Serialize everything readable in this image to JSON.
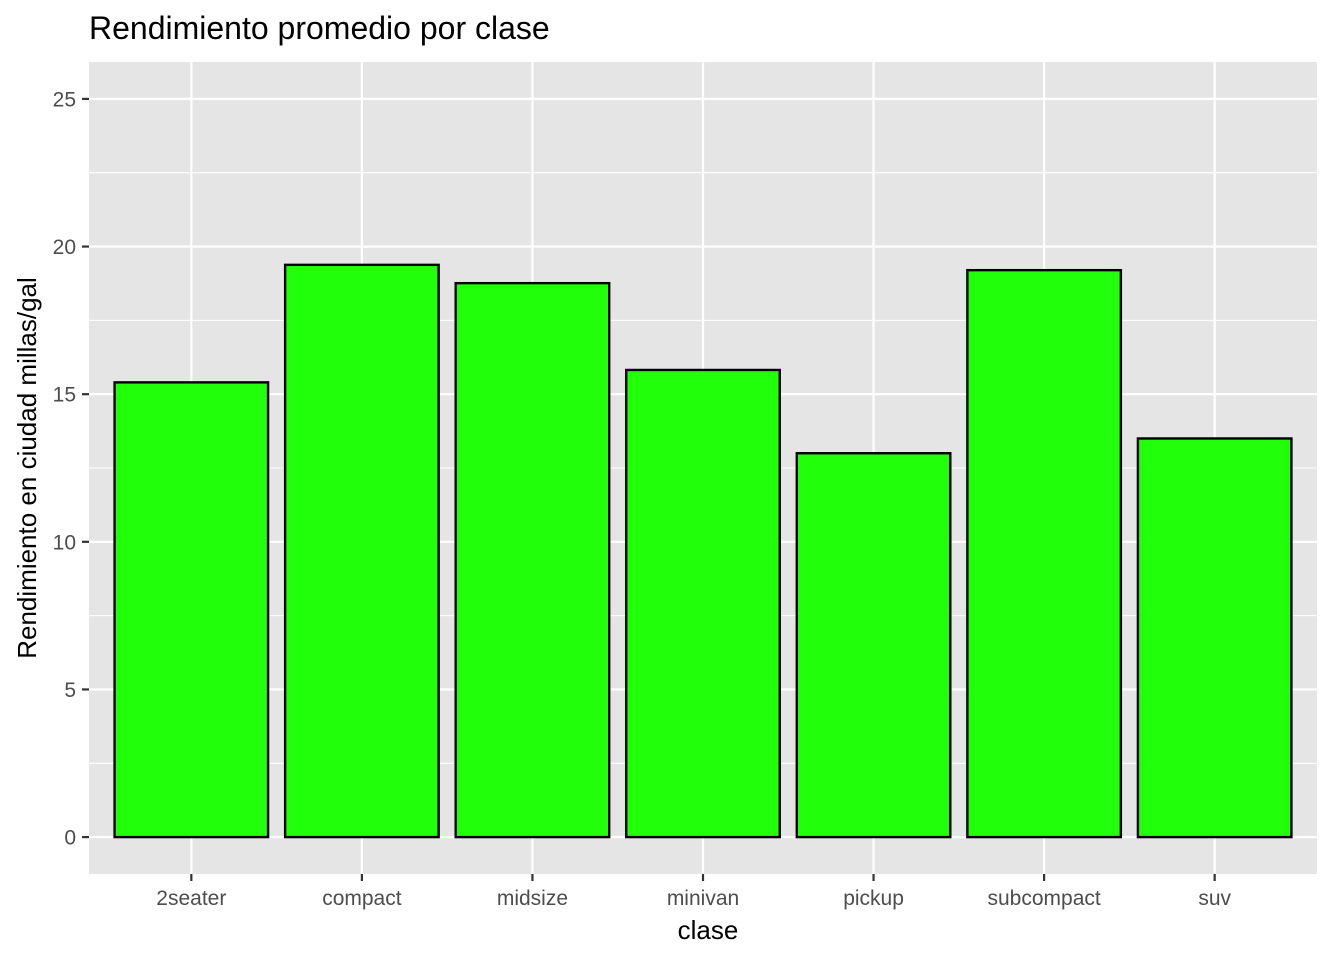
{
  "chart_data": {
    "type": "bar",
    "title": "Rendimiento promedio por clase",
    "xlabel": "clase",
    "ylabel": "Rendimiento en ciudad millas/gal",
    "categories": [
      "2seater",
      "compact",
      "midsize",
      "minivan",
      "pickup",
      "subcompact",
      "suv"
    ],
    "values": [
      15.4,
      19.38,
      18.76,
      15.82,
      13.0,
      19.2,
      13.5
    ],
    "ylim": [
      -1.25,
      26.25
    ],
    "yticks": [
      "0",
      "5",
      "10",
      "15",
      "20",
      "25"
    ],
    "grid": true,
    "legend": "none",
    "colors": {
      "bar_fill": "#22ff0b",
      "bar_stroke": "#000000",
      "panel_bg": "#e5e5e5",
      "grid": "#ffffff"
    }
  }
}
